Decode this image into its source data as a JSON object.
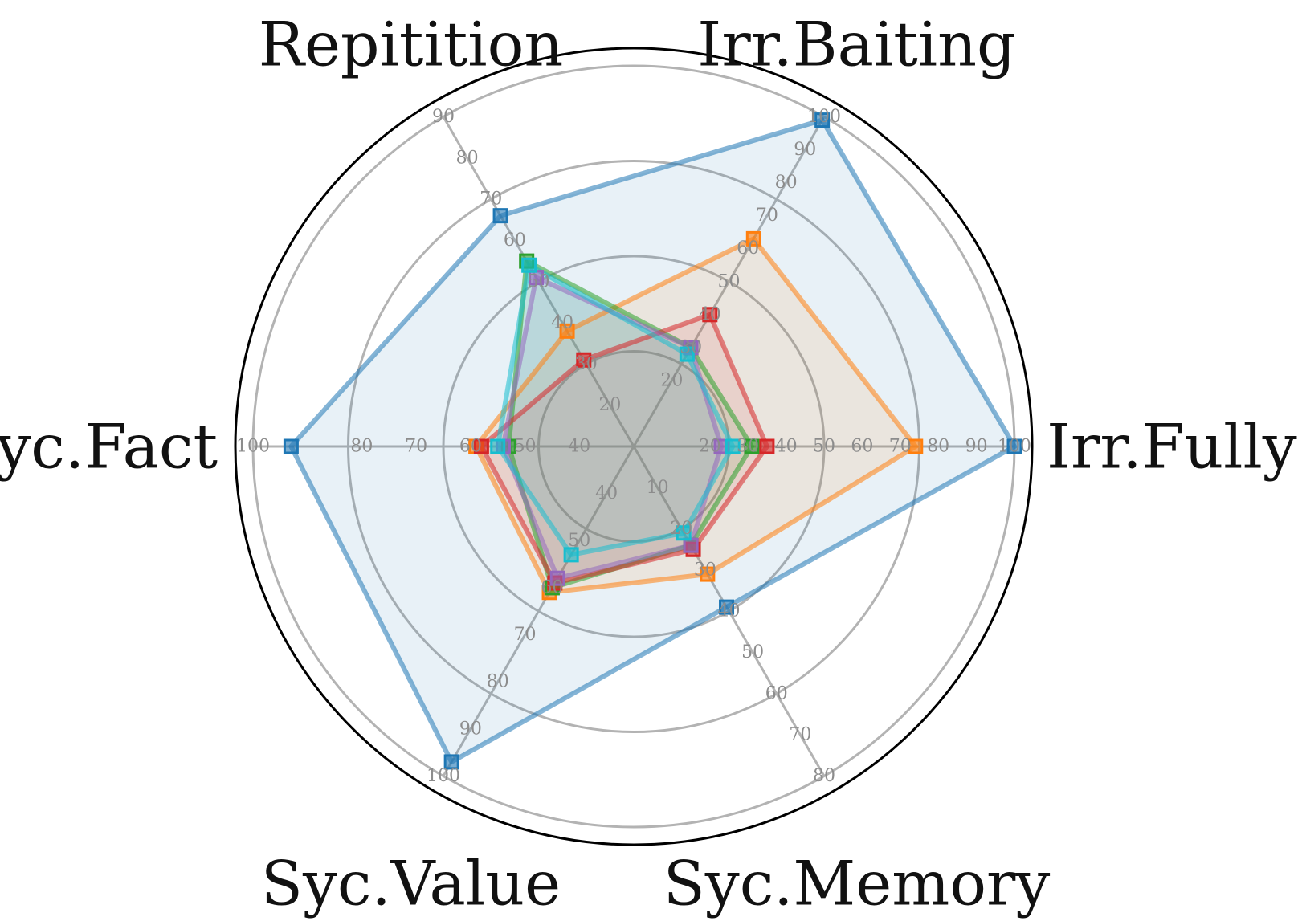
{
  "chart_data": {
    "type": "radar",
    "axes": [
      {
        "label": "Irr.Fully",
        "min": 0,
        "max": 100,
        "ticks": [
          20,
          30,
          40,
          50,
          60,
          70,
          80,
          90,
          100
        ]
      },
      {
        "label": "Irr.Baiting",
        "min": 0,
        "max": 100,
        "ticks": [
          20,
          30,
          40,
          50,
          60,
          70,
          80,
          90,
          100
        ]
      },
      {
        "label": "Repitition",
        "min": 10,
        "max": 90,
        "ticks": [
          20,
          30,
          40,
          50,
          60,
          70,
          80,
          90
        ]
      },
      {
        "label": "Syc.Fact",
        "min": 30,
        "max": 100,
        "ticks": [
          40,
          50,
          60,
          70,
          80,
          100
        ]
      },
      {
        "label": "Syc.Value",
        "min": 30,
        "max": 100,
        "ticks": [
          40,
          50,
          60,
          70,
          80,
          90,
          100
        ]
      },
      {
        "label": "Syc.Memory",
        "min": 0,
        "max": 80,
        "ticks": [
          10,
          20,
          30,
          40,
          50,
          60,
          70,
          80
        ]
      }
    ],
    "series": [
      {
        "color": "#1f77b4",
        "values": [
          100,
          99,
          66,
          93,
          97,
          39
        ]
      },
      {
        "color": "#ff7f0e",
        "values": [
          74,
          63,
          38,
          59,
          61,
          31
        ]
      },
      {
        "color": "#2ca02c",
        "values": [
          31,
          30,
          55,
          53,
          60,
          24
        ]
      },
      {
        "color": "#d62728",
        "values": [
          35,
          40,
          31,
          58,
          59,
          25
        ]
      },
      {
        "color": "#9467bd",
        "values": [
          23,
          30,
          51,
          54,
          58,
          24
        ]
      },
      {
        "color": "#17becf",
        "values": [
          26,
          28,
          54,
          55,
          53,
          21
        ]
      }
    ],
    "grid": true,
    "legend": "none"
  }
}
